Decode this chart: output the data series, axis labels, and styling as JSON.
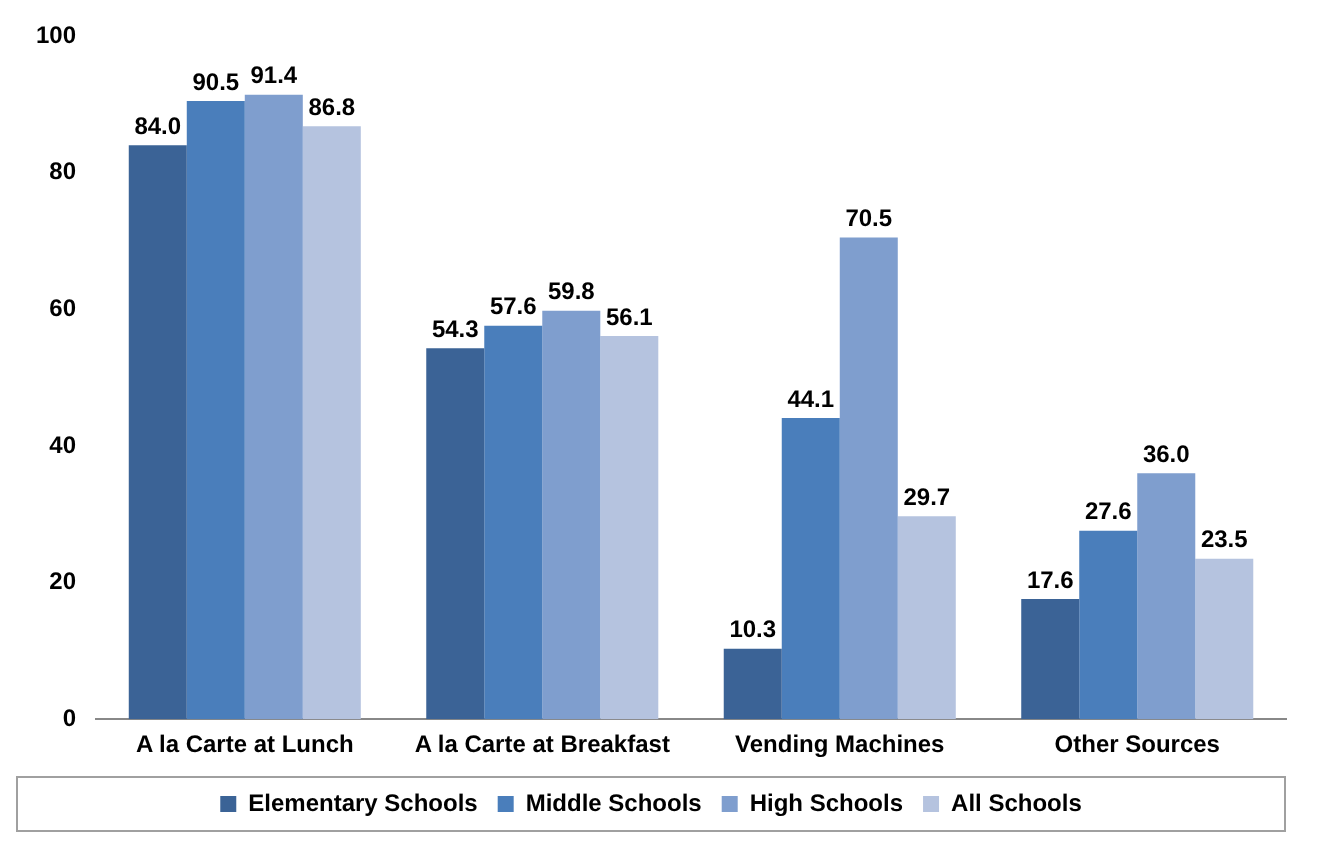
{
  "chart_data": {
    "type": "bar",
    "categories": [
      "A la Carte at Lunch",
      "A la Carte at Breakfast",
      "Vending Machines",
      "Other Sources"
    ],
    "series": [
      {
        "name": "Elementary Schools",
        "color": "#3b6396",
        "values": [
          84.0,
          54.3,
          10.3,
          17.6
        ],
        "value_labels": [
          "84.0",
          "54.3",
          "10.3",
          "17.6"
        ]
      },
      {
        "name": "Middle Schools",
        "color": "#4a7ebb",
        "values": [
          90.5,
          57.6,
          44.1,
          27.6
        ],
        "value_labels": [
          "90.5",
          "57.6",
          "44.1",
          "27.6"
        ]
      },
      {
        "name": "High Schools",
        "color": "#7f9ece",
        "values": [
          91.4,
          59.8,
          70.5,
          36.0
        ],
        "value_labels": [
          "91.4",
          "59.8",
          "70.5",
          "36.0"
        ]
      },
      {
        "name": "All Schools",
        "color": "#b5c3df",
        "values": [
          86.8,
          56.1,
          29.7,
          23.5
        ],
        "value_labels": [
          "86.8",
          "56.1",
          "29.7",
          "23.5"
        ]
      }
    ],
    "ylim": [
      0,
      100
    ],
    "yticks": [
      0,
      20,
      40,
      60,
      80,
      100
    ],
    "grid": false,
    "legend": "bottom"
  }
}
